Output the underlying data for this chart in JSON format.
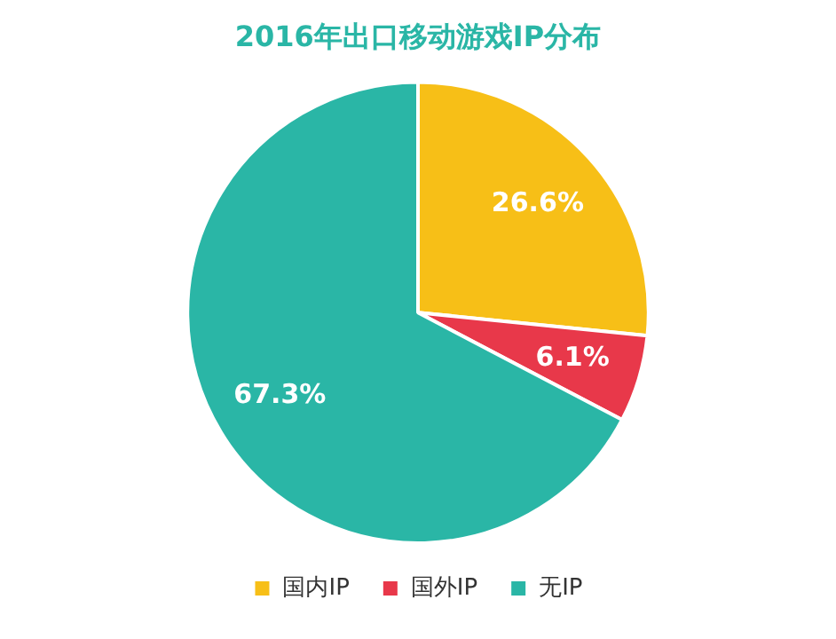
{
  "chart_data": {
    "type": "pie",
    "title": "2016年出口移动游戏IP分布",
    "categories": [
      "国内IP",
      "国外IP",
      "无IP"
    ],
    "values": [
      26.6,
      6.1,
      67.3
    ],
    "colors": [
      "#f7bf17",
      "#e8384a",
      "#2ab6a6"
    ],
    "value_labels": [
      "26.6%",
      "6.1%",
      "67.3%"
    ],
    "legend": "bottom"
  }
}
